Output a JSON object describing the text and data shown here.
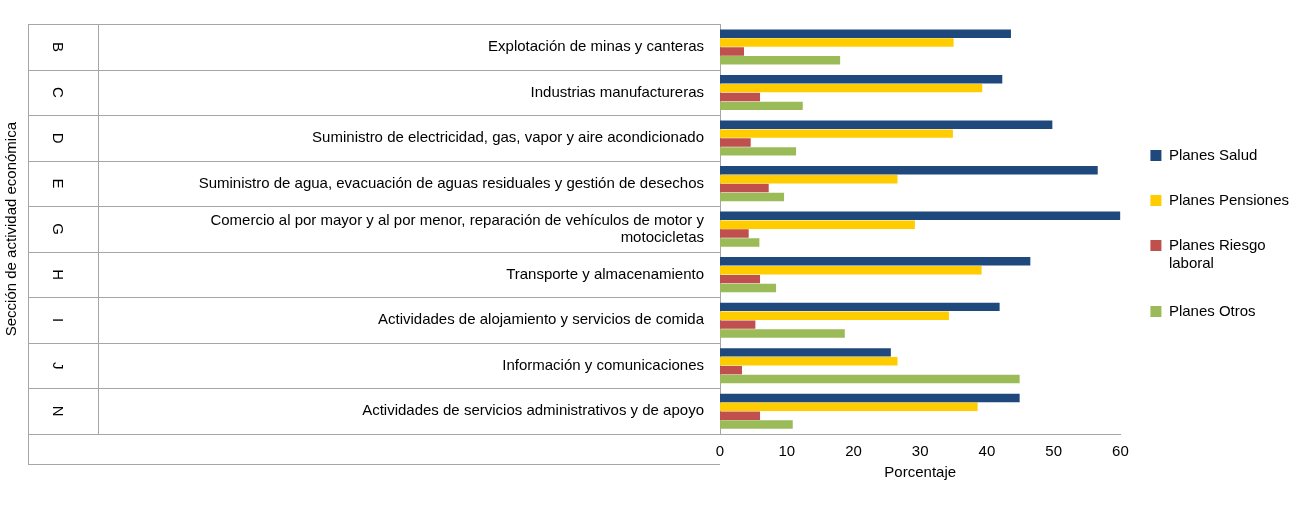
{
  "chart_data": {
    "type": "bar",
    "orientation": "horizontal",
    "xlabel": "Porcentaje",
    "categories": [
      "Explotación de minas y canteras",
      "Industrias manufactureras",
      "Suministro de electricidad, gas, vapor y aire acondicionado",
      "Suministro de agua, evacuación de aguas residuales y gestión de desechos",
      "Comercio al por mayor y al por menor, reparación de vehículos de motor y motocicletas",
      "Transporte y almacenamiento",
      "Actividades de alojamiento y servicios de comida",
      "Información y comunicaciones",
      "Actividades de servicios administrativos y de apoyo"
    ],
    "annotations": [
      "Sección de actividad económica",
      "B",
      "C",
      "D",
      "E",
      "G",
      "H",
      "I",
      "J",
      "N"
    ],
    "series": [
      {
        "name": "Planes Salud",
        "color": "#1f497d",
        "values": [
          43.6,
          42.3,
          49.8,
          56.6,
          60,
          46.5,
          41.9,
          25.6,
          44.9
        ]
      },
      {
        "name": "Planes Pensiones",
        "color": "#ffcc00",
        "values": [
          35.0,
          39.3,
          34.9,
          26.6,
          29.2,
          39.2,
          34.3,
          26.6,
          38.6
        ]
      },
      {
        "name": "Planes Riesgo laboral",
        "color": "#c0504d",
        "values": [
          3.6,
          6.0,
          4.6,
          7.3,
          4.3,
          6.0,
          5.3,
          3.3,
          6.0
        ]
      },
      {
        "name": "Planes Otros",
        "color": "#9bbb59",
        "values": [
          18.0,
          12.4,
          11.4,
          9.6,
          5.9,
          8.4,
          18.7,
          44.9,
          10.9
        ]
      }
    ],
    "xlim": [
      0,
      60
    ],
    "xticks": [
      0,
      10,
      20,
      30,
      40,
      50,
      60
    ],
    "grid": false,
    "legend": "right"
  }
}
